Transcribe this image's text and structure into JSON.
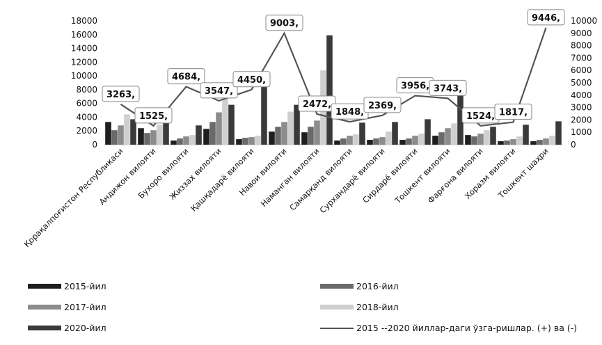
{
  "chart_data": {
    "type": "bar",
    "categories": [
      "Қорақалпоғистон Республикаси",
      "Андижон вилояти",
      "Бухоро вилояти",
      "Жиззах вилояти",
      "Қашқадарё вилояти",
      "Навои вилояти",
      "Наманган вилояти",
      "Самарқанд вилояти",
      "Сурхандарё вилояти",
      "Сирдарё вилояти",
      "Тошкент вилояти",
      "Фарғона вилояти",
      "Хоразм вилояти",
      "Тошкент шаҳри"
    ],
    "series": [
      {
        "name": "2015-йил",
        "axis": "left",
        "color": "#1e1e1e",
        "values": [
          3300,
          2400,
          600,
          2300,
          800,
          1900,
          1800,
          600,
          700,
          700,
          1300,
          1400,
          500,
          500
        ]
      },
      {
        "name": "2016-йил",
        "axis": "left",
        "color": "#6a6a6a",
        "values": [
          2100,
          1700,
          900,
          3300,
          1000,
          2600,
          2600,
          900,
          900,
          900,
          1800,
          1200,
          600,
          700
        ]
      },
      {
        "name": "2017-йил",
        "axis": "left",
        "color": "#8c8c8c",
        "values": [
          2800,
          2100,
          1200,
          4700,
          1100,
          3300,
          3500,
          1300,
          1100,
          1300,
          2400,
          1600,
          800,
          900
        ]
      },
      {
        "name": "2018-йил",
        "axis": "left",
        "color": "#cfcfcf",
        "values": [
          4400,
          2900,
          1400,
          6700,
          1300,
          4800,
          10800,
          1500,
          1900,
          1600,
          3100,
          2100,
          1200,
          1300
        ]
      },
      {
        "name": "2020-йил",
        "axis": "left",
        "color": "#3a3a3a",
        "values": [
          3700,
          3700,
          2800,
          5800,
          9900,
          5800,
          15900,
          3200,
          3300,
          3700,
          7700,
          2600,
          2900,
          3400
        ]
      },
      {
        "name": "2015 --2020 йиллар-даги ўзга-ришлар. (+) ва (-)",
        "axis": "right",
        "type": "line",
        "color": "#555555",
        "values": [
          3263,
          1525,
          4684,
          3547,
          4450,
          9003,
          2472,
          1848,
          2369,
          3956,
          3743,
          1524,
          1817,
          9446
        ]
      }
    ],
    "data_labels": [
      "3263,",
      "1525,",
      "4684,",
      "3547,",
      "4450,",
      "9003,",
      "2472,",
      "1848,",
      "2369,",
      "3956,",
      "3743,",
      "1524,",
      "1817,",
      "9446,"
    ],
    "left_axis": {
      "min": 0,
      "max": 18000,
      "ticks": [
        "0",
        "2000",
        "4000",
        "6000",
        "8000",
        "10000",
        "12000",
        "14000",
        "16000",
        "18000"
      ]
    },
    "right_axis": {
      "min": 0,
      "max": 10000,
      "ticks": [
        "0",
        "1000",
        "2000",
        "3000",
        "4000",
        "5000",
        "6000",
        "7000",
        "8000",
        "9000",
        "10000"
      ]
    },
    "grid": false,
    "legend_position": "bottom"
  }
}
